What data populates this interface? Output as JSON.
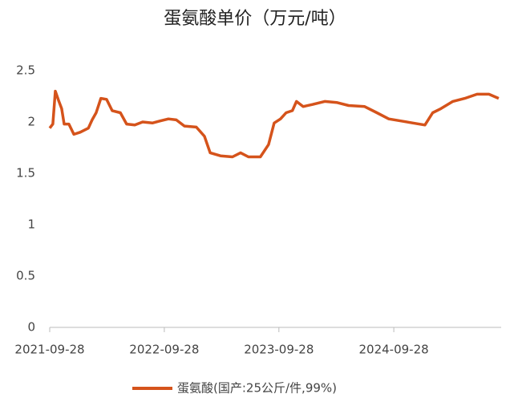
{
  "chart_data": {
    "type": "line",
    "title": "蛋氨酸单价（万元/吨）",
    "x": [
      "2021-09-28",
      "2021-10-08",
      "2021-10-16",
      "2021-10-26",
      "2021-11-05",
      "2021-11-13",
      "2021-11-28",
      "2021-12-14",
      "2022-01-03",
      "2022-01-29",
      "2022-02-10",
      "2022-02-23",
      "2022-03-10",
      "2022-03-28",
      "2022-04-15",
      "2022-05-11",
      "2022-05-31",
      "2022-06-26",
      "2022-07-21",
      "2022-08-21",
      "2022-09-15",
      "2022-10-11",
      "2022-11-05",
      "2022-12-01",
      "2023-01-08",
      "2023-02-03",
      "2023-02-21",
      "2023-03-26",
      "2023-05-03",
      "2023-05-29",
      "2023-06-23",
      "2023-07-31",
      "2023-08-26",
      "2023-09-13",
      "2023-10-03",
      "2023-10-21",
      "2023-11-10",
      "2023-11-23",
      "2023-12-14",
      "2024-01-13",
      "2024-02-21",
      "2024-03-30",
      "2024-05-07",
      "2024-06-27",
      "2024-08-05",
      "2024-09-12",
      "2024-10-20",
      "2024-11-28",
      "2025-01-05",
      "2025-01-30",
      "2025-02-25",
      "2025-04-04",
      "2025-05-12",
      "2025-06-20",
      "2025-07-28",
      "2025-08-28"
    ],
    "series": [
      {
        "name": "蛋氨酸(国产:25公斤/件,99%)",
        "color": "#d5531b",
        "values": [
          1.94,
          1.98,
          2.3,
          2.21,
          2.13,
          1.98,
          1.98,
          1.88,
          1.9,
          1.94,
          2.02,
          2.09,
          2.23,
          2.22,
          2.11,
          2.09,
          1.98,
          1.97,
          2.0,
          1.99,
          2.01,
          2.03,
          2.02,
          1.96,
          1.95,
          1.86,
          1.7,
          1.67,
          1.66,
          1.7,
          1.66,
          1.66,
          1.78,
          1.99,
          2.03,
          2.09,
          2.11,
          2.2,
          2.15,
          2.17,
          2.2,
          2.19,
          2.16,
          2.15,
          2.09,
          2.03,
          2.01,
          1.99,
          1.97,
          2.09,
          2.13,
          2.2,
          2.23,
          2.27,
          2.27,
          2.23
        ]
      }
    ],
    "xlim": [
      "2021-09-28",
      "2025-09-05"
    ],
    "xticks": [
      "2021-09-28",
      "2022-09-28",
      "2023-09-28",
      "2024-09-28"
    ],
    "ylim": [
      0,
      2.5
    ],
    "yticks": [
      0,
      0.5,
      1,
      1.5,
      2,
      2.5
    ],
    "grid": false,
    "legend": "bottom"
  }
}
